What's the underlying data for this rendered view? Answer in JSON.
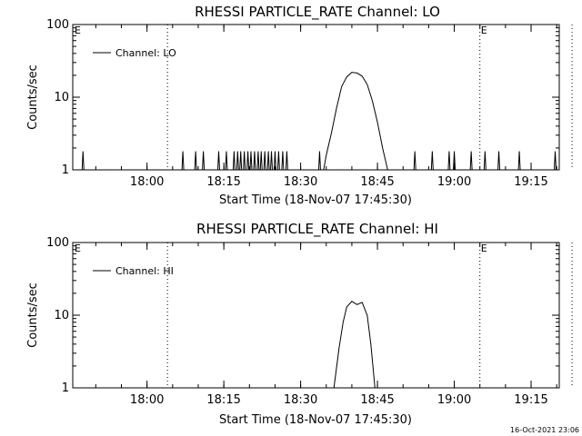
{
  "footer_timestamp": "16-Oct-2021 23:06",
  "chart_data": [
    {
      "type": "line",
      "title": "RHESSI PARTICLE_RATE Channel: LO",
      "xlabel": "Start Time (18-Nov-07 17:45:30)",
      "ylabel": "Counts/sec",
      "yscale": "log",
      "ylim": [
        1,
        100
      ],
      "ytick_labels": [
        "1",
        "10",
        "100"
      ],
      "xlim_minutes_after_start": [
        0,
        95
      ],
      "xtick_labels": [
        "18:00",
        "18:15",
        "18:30",
        "18:45",
        "19:00",
        "19:15"
      ],
      "legend": [
        {
          "label": "Channel: LO"
        }
      ],
      "legend_position": "top-left",
      "markers": [
        {
          "time": "18:04",
          "label": ""
        },
        {
          "time": "19:05",
          "label": "E"
        },
        {
          "time": "19:23",
          "label": ""
        }
      ],
      "start_marker_label": "E",
      "spike_times": [
        "17:47.5",
        "18:07",
        "18:09.5",
        "18:11",
        "18:14",
        "18:15.5",
        "18:17",
        "18:17.7",
        "18:18.3",
        "18:19",
        "18:19.7",
        "18:20.3",
        "18:21",
        "18:21.7",
        "18:22.3",
        "18:23",
        "18:23.7",
        "18:24.3",
        "18:25",
        "18:25.7",
        "18:26.5",
        "18:27.3",
        "18:33.7",
        "18:52.3",
        "18:55.7",
        "18:59",
        "19:00",
        "19:03.3",
        "19:06",
        "19:08.7",
        "19:12.7",
        "19:19.7"
      ],
      "spike_value": 1.8,
      "series": [
        {
          "name": "Channel: LO",
          "x": [
            "18:34.5",
            "18:35",
            "18:36",
            "18:37",
            "18:38",
            "18:39",
            "18:40",
            "18:41",
            "18:42",
            "18:43",
            "18:44",
            "18:45",
            "18:46",
            "18:47"
          ],
          "values": [
            1,
            1.6,
            3.2,
            7,
            14,
            19,
            22,
            21.5,
            19.5,
            15,
            9,
            4.5,
            2,
            1
          ]
        }
      ]
    },
    {
      "type": "line",
      "title": "RHESSI PARTICLE_RATE Channel: HI",
      "xlabel": "Start Time (18-Nov-07 17:45:30)",
      "ylabel": "Counts/sec",
      "yscale": "log",
      "ylim": [
        1,
        100
      ],
      "ytick_labels": [
        "1",
        "10",
        "100"
      ],
      "xlim_minutes_after_start": [
        0,
        95
      ],
      "xtick_labels": [
        "18:00",
        "18:15",
        "18:30",
        "18:45",
        "19:00",
        "19:15"
      ],
      "legend": [
        {
          "label": "Channel: HI"
        }
      ],
      "legend_position": "top-left",
      "markers": [
        {
          "time": "18:04",
          "label": ""
        },
        {
          "time": "19:05",
          "label": "E"
        },
        {
          "time": "19:23",
          "label": ""
        }
      ],
      "start_marker_label": "E",
      "series": [
        {
          "name": "Channel: HI",
          "x": [
            "18:36.5",
            "18:37.5",
            "18:38.3",
            "18:39",
            "18:40",
            "18:41",
            "18:42",
            "18:43",
            "18:43.7",
            "18:44.5"
          ],
          "values": [
            1,
            3.5,
            8,
            13,
            15.5,
            14,
            15,
            10,
            4,
            1
          ]
        }
      ]
    }
  ]
}
